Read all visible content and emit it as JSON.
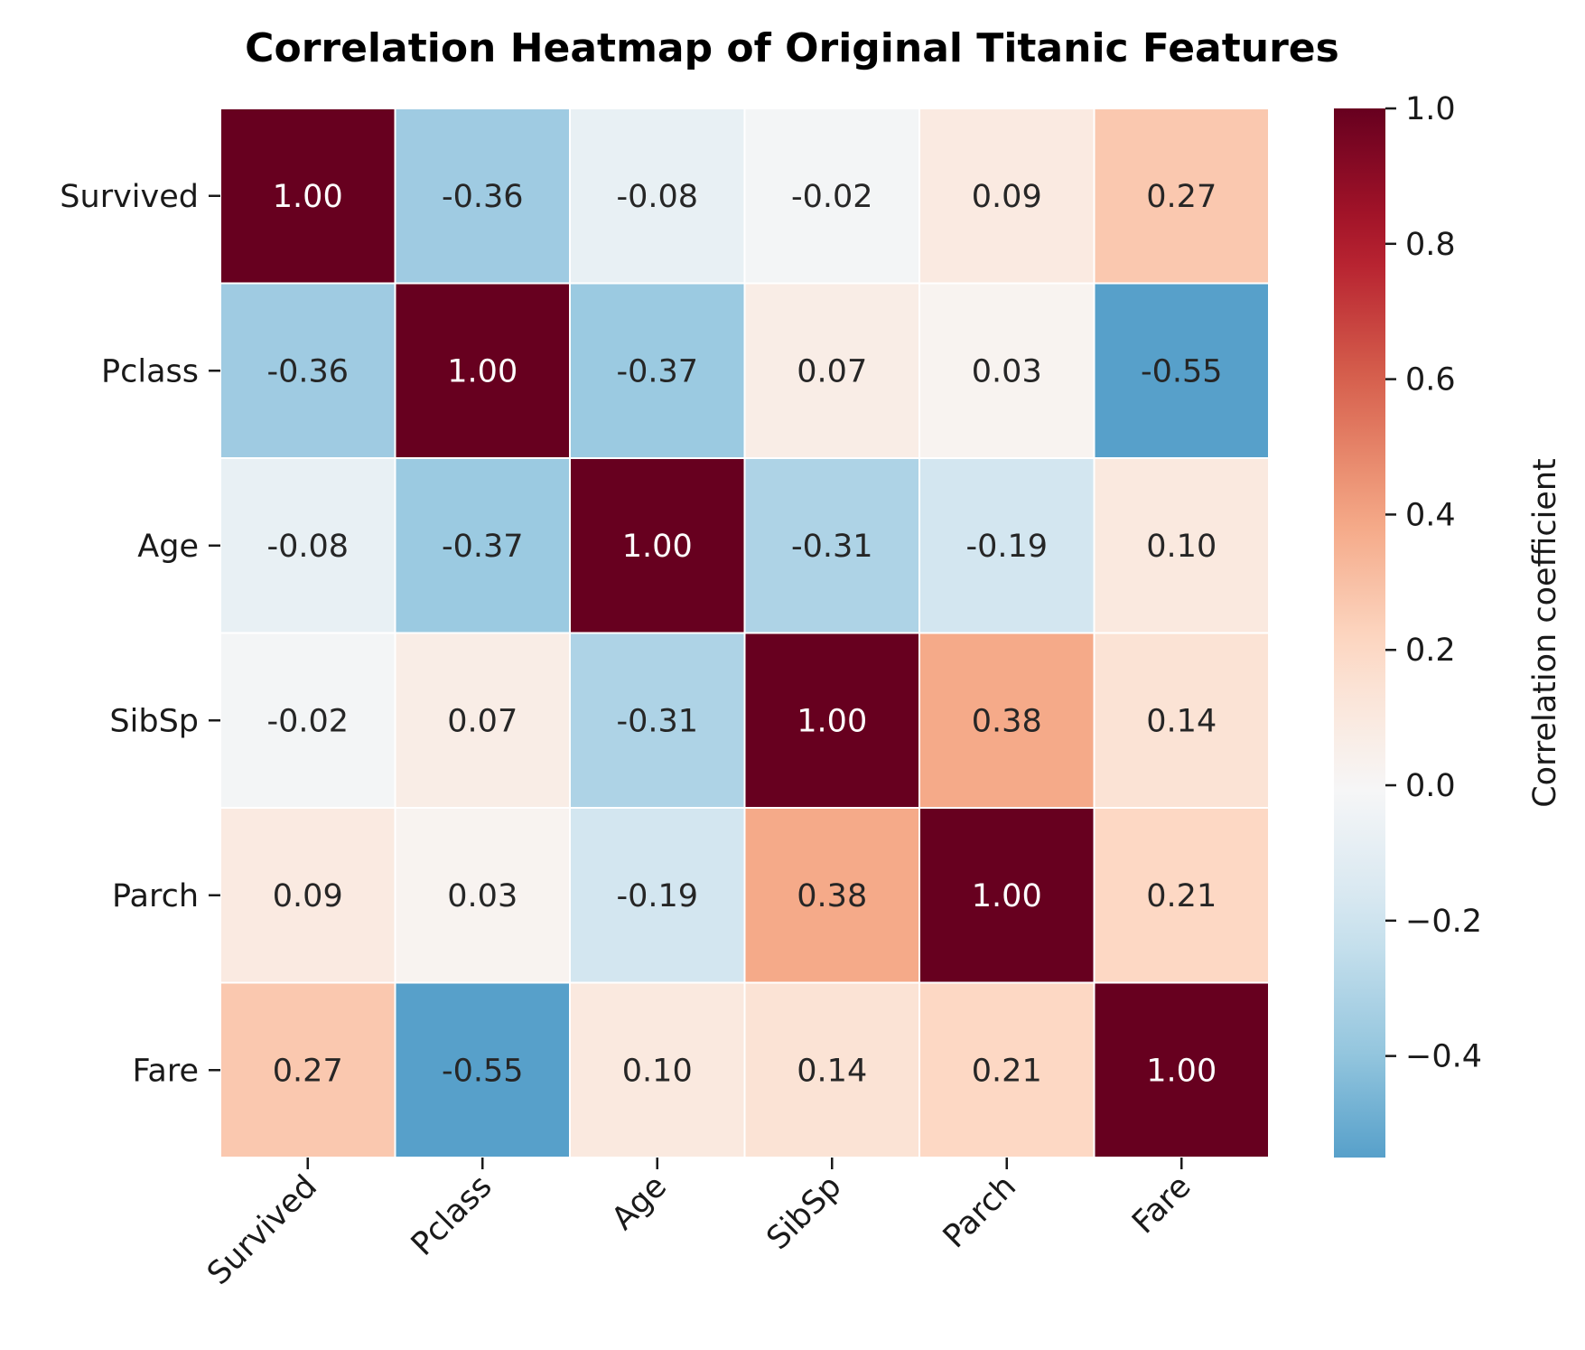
{
  "chart_data": {
    "type": "heatmap",
    "title": "Correlation Heatmap of Original Titanic Features",
    "rows": [
      "Survived",
      "Pclass",
      "Age",
      "SibSp",
      "Parch",
      "Fare"
    ],
    "columns": [
      "Survived",
      "Pclass",
      "Age",
      "SibSp",
      "Parch",
      "Fare"
    ],
    "values": [
      [
        1.0,
        -0.36,
        -0.08,
        -0.02,
        0.09,
        0.27
      ],
      [
        -0.36,
        1.0,
        -0.37,
        0.07,
        0.03,
        -0.55
      ],
      [
        -0.08,
        -0.37,
        1.0,
        -0.31,
        -0.19,
        0.1
      ],
      [
        -0.02,
        0.07,
        -0.31,
        1.0,
        0.38,
        0.14
      ],
      [
        0.09,
        0.03,
        -0.19,
        0.38,
        1.0,
        0.21
      ],
      [
        0.27,
        -0.55,
        0.1,
        0.14,
        0.21,
        1.0
      ]
    ],
    "cell_labels": [
      [
        "1.00",
        "-0.36",
        "-0.08",
        "-0.02",
        "0.09",
        "0.27"
      ],
      [
        "-0.36",
        "1.00",
        "-0.37",
        "0.07",
        "0.03",
        "-0.55"
      ],
      [
        "-0.08",
        "-0.37",
        "1.00",
        "-0.31",
        "-0.19",
        "0.10"
      ],
      [
        "-0.02",
        "0.07",
        "-0.31",
        "1.00",
        "0.38",
        "0.14"
      ],
      [
        "0.09",
        "0.03",
        "-0.19",
        "0.38",
        "1.00",
        "0.21"
      ],
      [
        "0.27",
        "-0.55",
        "0.10",
        "0.14",
        "0.21",
        "1.00"
      ]
    ],
    "colormap": "RdBu_r",
    "value_range": [
      -0.55,
      1.0
    ],
    "colormap_center": 0.0,
    "colorbar": {
      "label": "Correlation coefficient",
      "ticks": [
        1.0,
        0.8,
        0.6,
        0.4,
        0.2,
        0.0,
        -0.2,
        -0.4
      ],
      "tick_labels": [
        "1.0",
        "0.8",
        "0.6",
        "0.4",
        "0.2",
        "0.0",
        "−0.2",
        "−0.4"
      ]
    },
    "cell_border_color": "#ffffff",
    "dark_text_color": "#262626",
    "light_text_color": "#ffffff"
  }
}
